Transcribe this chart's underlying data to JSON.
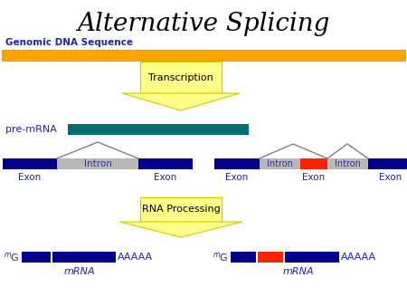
{
  "title": "Alternative Splicing",
  "title_fontsize": 20,
  "title_color": "black",
  "bg_color": "white",
  "blue": "#00008B",
  "orange": "#FFA500",
  "teal": "#007070",
  "gray": "#B8B8B8",
  "red": "#FF2200",
  "yellow_fill": "#FFFF88",
  "yellow_edge": "#CCCC00",
  "text_color": "#2222AA",
  "genomic_label": "Genomic DNA Sequence",
  "pre_mrna_label": "pre-mRNA",
  "transcription_label": "Transcription",
  "rna_processing_label": "RNA Processing",
  "mrna_label": "mRNA",
  "exon_label": "Exon",
  "intron_label": "Intron",
  "aaaaa_label": "AAAAA"
}
